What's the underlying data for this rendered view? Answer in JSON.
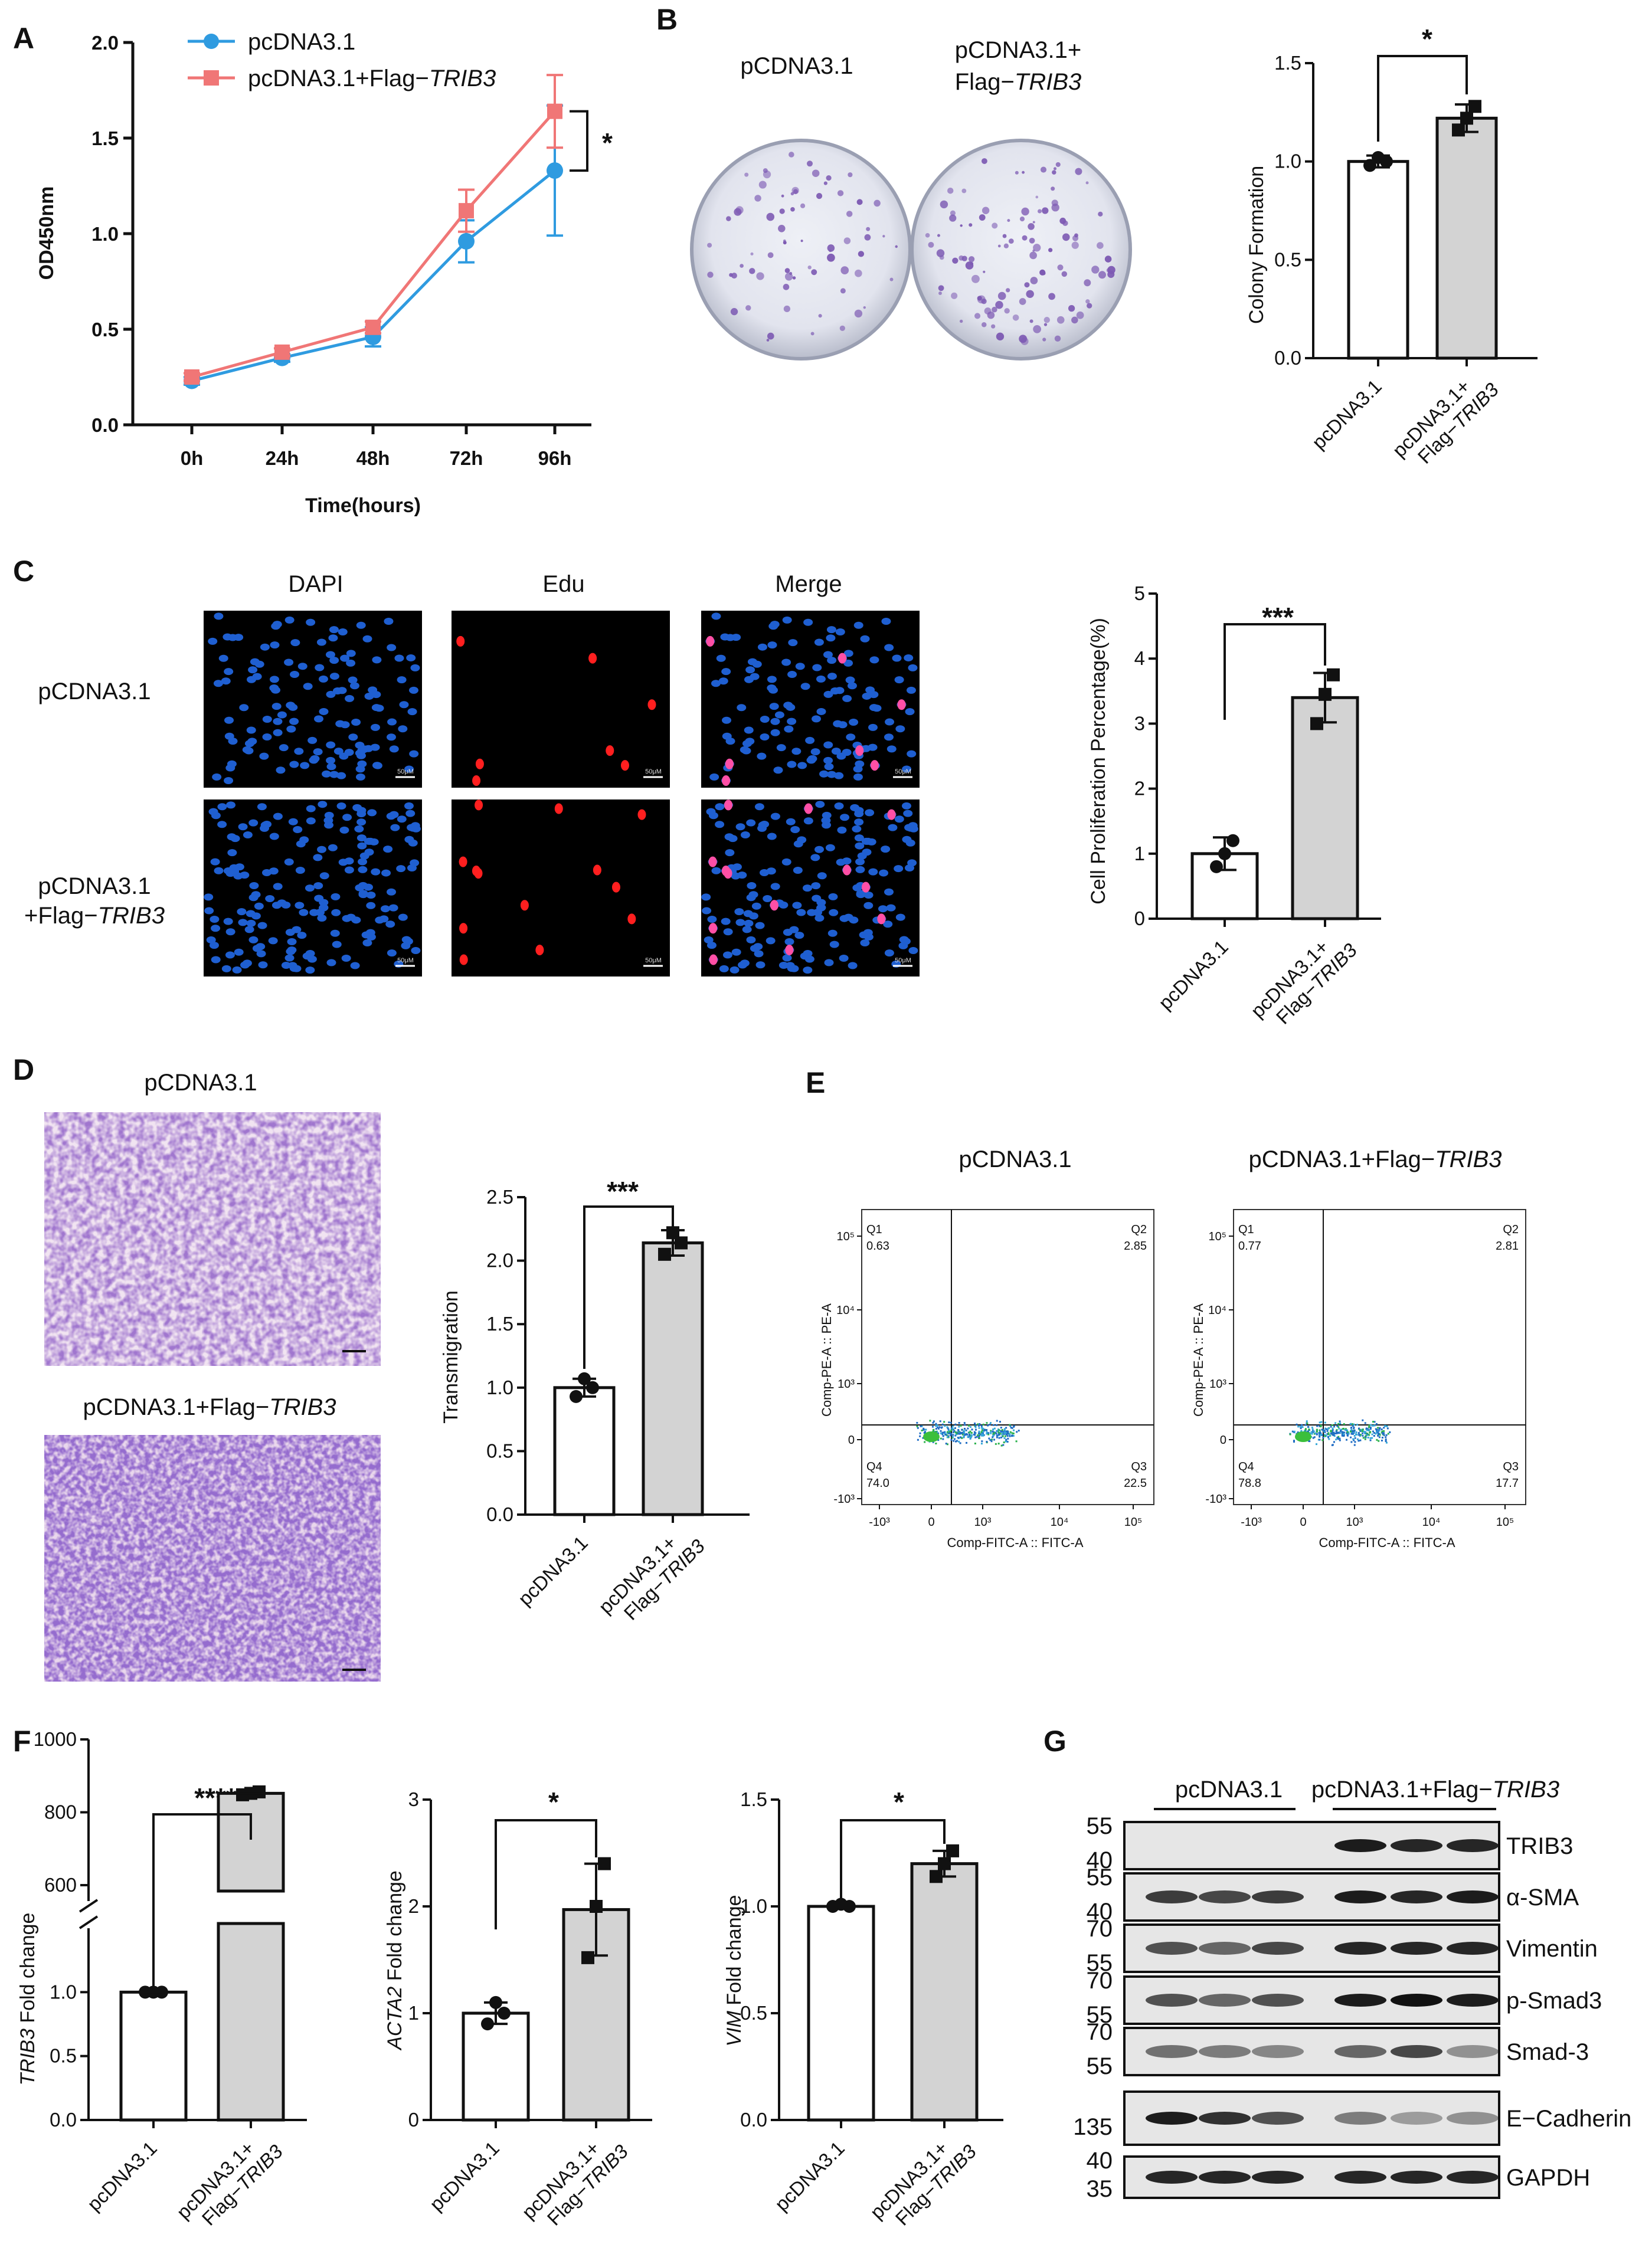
{
  "colors": {
    "blue": "#2f9be0",
    "pink": "#f07676",
    "bar_grey": "#d3d3d3",
    "dapi": "#1f5fd1",
    "edu": "#ff1f1f",
    "stain_purple": "#7d5ab3"
  },
  "panels": {
    "A": "A",
    "B": "B",
    "C": "C",
    "D": "D",
    "E": "E",
    "F": "F",
    "G": "G"
  },
  "A": {
    "legend": [
      "pcDNA3.1",
      "pcDNA3.1+Flag−",
      "TRIB3"
    ],
    "ylabel": "OD450nm",
    "xlabel": "Time(hours)",
    "sig": "*"
  },
  "B": {
    "img_labels": [
      "pCDNA3.1",
      "pCDNA3.1+",
      "Flag−",
      "TRIB3"
    ],
    "ylabel": "Colony Formation",
    "sig": "*"
  },
  "C": {
    "cols": [
      "DAPI",
      "Edu",
      "Merge"
    ],
    "rows": [
      "pCDNA3.1",
      "pCDNA3.1",
      "+Flag−",
      "TRIB3"
    ],
    "scalebar": "50μM",
    "ylabel": "Cell Proliferation Percentage(%)",
    "sig": "***"
  },
  "D": {
    "img_labels": [
      "pCDNA3.1",
      "pCDNA3.1+Flag−",
      "TRIB3"
    ],
    "ylabel": "Transmigration",
    "sig": "***"
  },
  "E": {
    "titles": [
      "pCDNA3.1",
      "pCDNA3.1+Flag−",
      "TRIB3"
    ],
    "ylabel": "Comp-PE-A :: PE-A",
    "xlabel": "Comp-FITC-A :: FITC-A",
    "y_ticks": [
      "10⁵",
      "10⁴",
      "10³",
      "0",
      "-10³"
    ],
    "x_ticks": [
      "-10³",
      "0",
      "10³",
      "10⁴",
      "10⁵"
    ],
    "plots": [
      {
        "q1": "Q1",
        "q1v": "0.63",
        "q2": "Q2",
        "q2v": "2.85",
        "q3": "Q3",
        "q3v": "22.5",
        "q4": "Q4",
        "q4v": "74.0"
      },
      {
        "q1": "Q1",
        "q1v": "0.77",
        "q2": "Q2",
        "q2v": "2.81",
        "q3": "Q3",
        "q3v": "17.7",
        "q4": "Q4",
        "q4v": "78.8"
      }
    ]
  },
  "F": {
    "ylabels": [
      [
        "TRIB3",
        " Fold change"
      ],
      [
        "ACTA2",
        " Fold change"
      ],
      [
        "VIM",
        " Fold change"
      ]
    ],
    "sigs": [
      "****",
      "*",
      "*"
    ]
  },
  "G": {
    "groups": [
      "pcDNA3.1",
      "pcDNA3.1+Flag−",
      "TRIB3"
    ],
    "bands": [
      {
        "name": "TRIB3",
        "mw": [
          "55",
          "40"
        ]
      },
      {
        "name": "α-SMA",
        "mw": [
          "55",
          "40"
        ]
      },
      {
        "name": "Vimentin",
        "mw": [
          "70",
          "55"
        ]
      },
      {
        "name": "p-Smad3",
        "mw": [
          "70",
          "55"
        ]
      },
      {
        "name": "Smad-3",
        "mw": [
          "70",
          "55"
        ]
      },
      {
        "name": "E−Cadherin",
        "mw": [
          "135"
        ]
      },
      {
        "name": "GAPDH",
        "mw": [
          "40",
          "35"
        ]
      }
    ]
  },
  "bar_categories": [
    "pcDNA3.1",
    "pcDNA3.1+",
    "Flag−",
    "TRIB3"
  ],
  "chart_data": [
    {
      "type": "line",
      "panel": "A",
      "categories": [
        "0h",
        "24h",
        "48h",
        "72h",
        "96h"
      ],
      "xlabel": "Time(hours)",
      "ylabel": "OD450nm",
      "ylim": [
        0,
        2.0
      ],
      "yticks": [
        "0.0",
        "0.5",
        "1.0",
        "1.5",
        "2.0"
      ],
      "series": [
        {
          "name": "pcDNA3.1",
          "values": [
            0.23,
            0.35,
            0.46,
            0.96,
            1.33
          ],
          "err": [
            0.02,
            0.02,
            0.05,
            0.11,
            0.34
          ]
        },
        {
          "name": "pcDNA3.1+Flag−TRIB3",
          "values": [
            0.25,
            0.38,
            0.51,
            1.12,
            1.64
          ],
          "err": [
            0.02,
            0.02,
            0.03,
            0.11,
            0.19
          ]
        }
      ]
    },
    {
      "type": "bar",
      "panel": "B",
      "categories": [
        "pcDNA3.1",
        "pcDNA3.1+Flag−TRIB3"
      ],
      "values": [
        1.0,
        1.22
      ],
      "err": [
        0.03,
        0.07
      ],
      "points": [
        [
          0.98,
          1.02,
          1.0
        ],
        [
          1.16,
          1.22,
          1.28
        ]
      ],
      "ylabel": "Colony Formation",
      "ylim": [
        0,
        1.5
      ],
      "yticks": [
        "0.0",
        "0.5",
        "1.0",
        "1.5"
      ]
    },
    {
      "type": "bar",
      "panel": "C",
      "categories": [
        "pcDNA3.1",
        "pcDNA3.1+Flag−TRIB3"
      ],
      "values": [
        1.0,
        3.4
      ],
      "err": [
        0.25,
        0.38
      ],
      "points": [
        [
          0.8,
          1.0,
          1.2
        ],
        [
          3.0,
          3.45,
          3.75
        ]
      ],
      "ylabel": "Cell Proliferation Percentage(%)",
      "ylim": [
        0,
        5
      ],
      "yticks": [
        "0",
        "1",
        "2",
        "3",
        "4",
        "5"
      ]
    },
    {
      "type": "bar",
      "panel": "D",
      "categories": [
        "pcDNA3.1",
        "pcDNA3.1+Flag−TRIB3"
      ],
      "values": [
        1.0,
        2.14
      ],
      "err": [
        0.07,
        0.1
      ],
      "points": [
        [
          0.93,
          1.07,
          1.0
        ],
        [
          2.05,
          2.22,
          2.14
        ]
      ],
      "ylabel": "Transmigration",
      "ylim": [
        0,
        2.5
      ],
      "yticks": [
        "0.0",
        "0.5",
        "1.0",
        "1.5",
        "2.0",
        "2.5"
      ]
    },
    {
      "type": "bar",
      "panel": "F1",
      "categories": [
        "pcDNA3.1",
        "pcDNA3.1+Flag−TRIB3"
      ],
      "values": [
        1.0,
        852
      ],
      "err": [
        0.02,
        5
      ],
      "points": [
        [
          1.0,
          1.0,
          1.0
        ],
        [
          848,
          852,
          856
        ]
      ],
      "ylabel": "TRIB3 Fold change",
      "lower_ylim": [
        0,
        1.5
      ],
      "upper_ylim": [
        600,
        1000
      ],
      "yticks": [
        "0.0",
        "0.5",
        "1.0",
        "600",
        "800",
        "1000"
      ]
    },
    {
      "type": "bar",
      "panel": "F2",
      "categories": [
        "pcDNA3.1",
        "pcDNA3.1+Flag−TRIB3"
      ],
      "values": [
        1.0,
        1.97
      ],
      "err": [
        0.1,
        0.43
      ],
      "points": [
        [
          0.9,
          1.1,
          1.0
        ],
        [
          1.52,
          2.0,
          2.4
        ]
      ],
      "ylabel": "ACTA2 Fold change",
      "ylim": [
        0,
        3
      ],
      "yticks": [
        "0",
        "1",
        "2",
        "3"
      ]
    },
    {
      "type": "bar",
      "panel": "F3",
      "categories": [
        "pcDNA3.1",
        "pcDNA3.1+Flag−TRIB3"
      ],
      "values": [
        1.0,
        1.2
      ],
      "err": [
        0.01,
        0.06
      ],
      "points": [
        [
          1.0,
          1.01,
          1.0
        ],
        [
          1.14,
          1.2,
          1.26
        ]
      ],
      "ylabel": "VIM Fold change",
      "ylim": [
        0,
        1.5
      ],
      "yticks": [
        "0.0",
        "0.5",
        "1.0",
        "1.5"
      ]
    }
  ]
}
